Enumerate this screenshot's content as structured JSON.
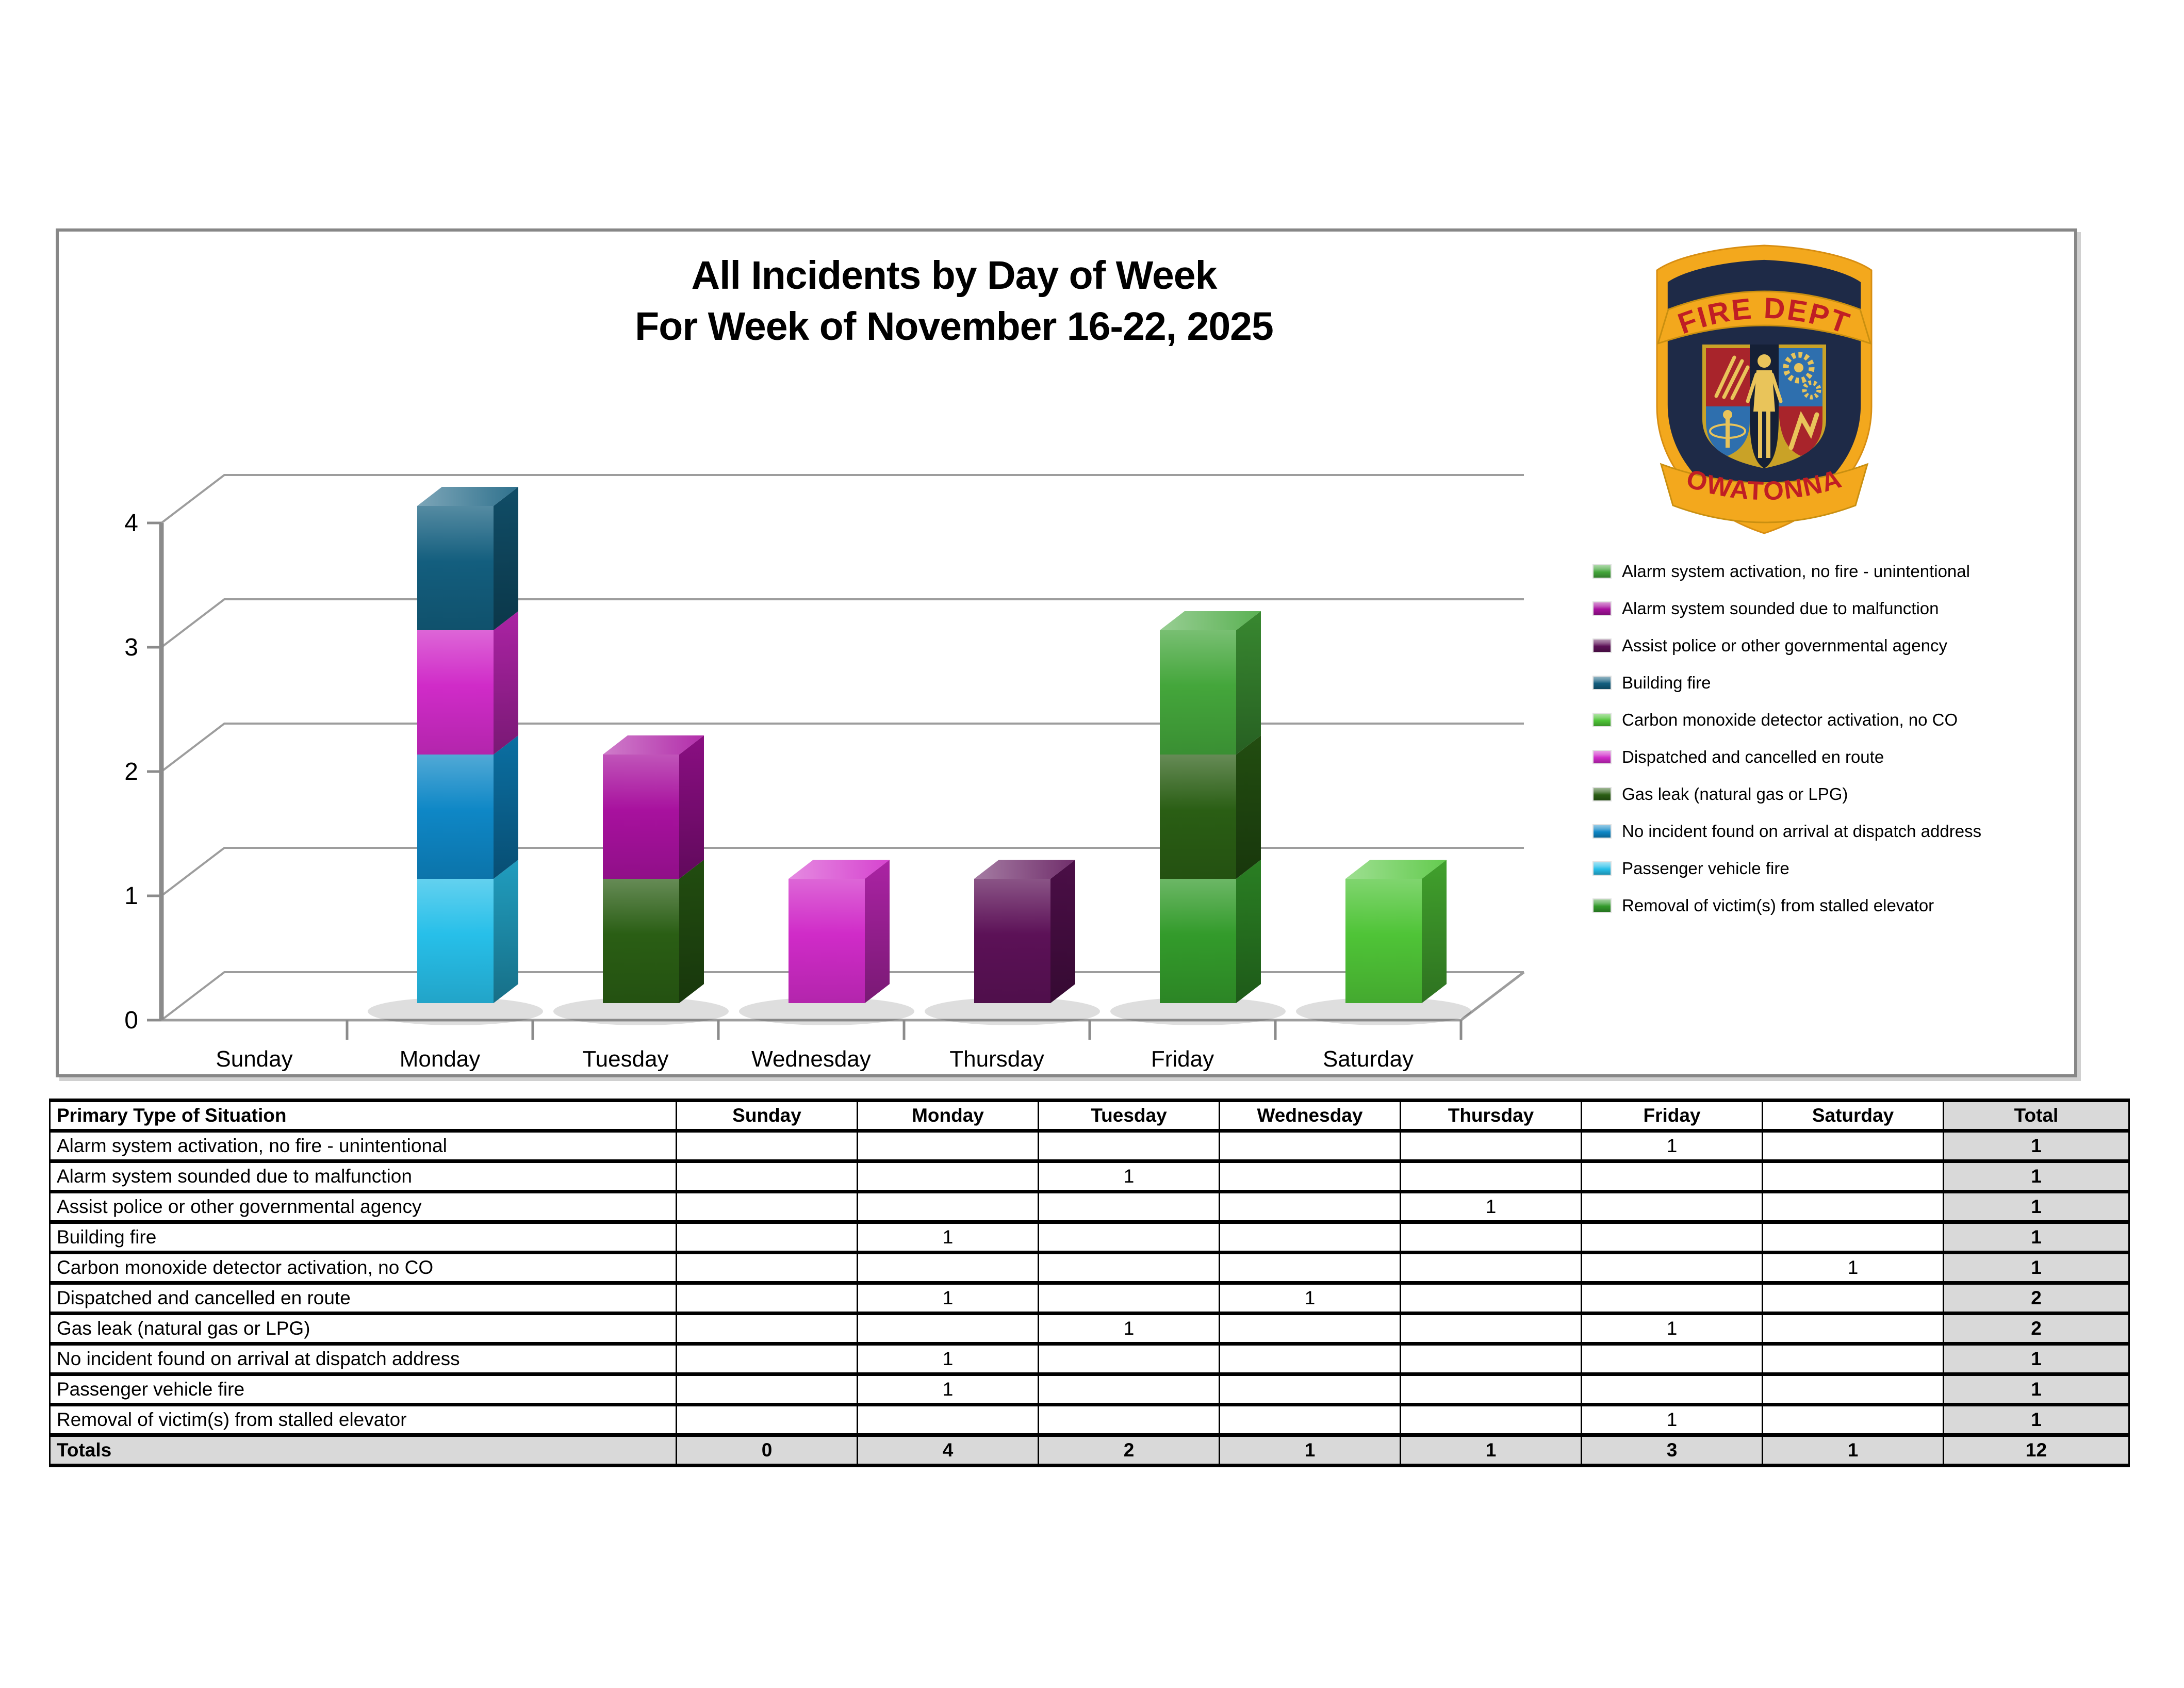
{
  "title": {
    "line1": "All Incidents by Day of Week",
    "line2": "For Week of November 16-22, 2025"
  },
  "logo": {
    "name": "owatonna-fire-dept-badge",
    "top_banner": "FIRE DEPT",
    "bottom_banner": "OWATONNA",
    "colors": {
      "gold": "#F3A81D",
      "navy": "#1E2A47",
      "red": "#B7232A",
      "blue": "#2E6FAE",
      "banner_text": "#C01E24"
    }
  },
  "chart_data": {
    "type": "bar",
    "stacked": true,
    "projection": "3d",
    "title": "All Incidents by Day of Week For Week of November 16-22, 2025",
    "xlabel": "",
    "ylabel": "",
    "categories": [
      "Sunday",
      "Monday",
      "Tuesday",
      "Wednesday",
      "Thursday",
      "Friday",
      "Saturday"
    ],
    "y_ticks": [
      0,
      1,
      2,
      3,
      4
    ],
    "ylim": [
      0,
      4
    ],
    "grid": true,
    "legend_position": "right",
    "stack_order_bottom_to_top": "reverse-alphabetical",
    "series": [
      {
        "name": "Alarm system activation, no fire - unintentional",
        "color": "#44A63B",
        "values": [
          0,
          0,
          0,
          0,
          0,
          1,
          0
        ]
      },
      {
        "name": "Alarm system sounded due to malfunction",
        "color": "#A8119E",
        "values": [
          0,
          0,
          1,
          0,
          0,
          0,
          0
        ]
      },
      {
        "name": "Assist police or other governmental agency",
        "color": "#5C1157",
        "values": [
          0,
          0,
          0,
          0,
          1,
          0,
          0
        ]
      },
      {
        "name": "Building fire",
        "color": "#135E7E",
        "values": [
          0,
          1,
          0,
          0,
          0,
          0,
          0
        ]
      },
      {
        "name": "Carbon monoxide detector activation, no CO",
        "color": "#4FC437",
        "values": [
          0,
          0,
          0,
          0,
          0,
          0,
          1
        ]
      },
      {
        "name": "Dispatched and cancelled en route",
        "color": "#D02BC8",
        "values": [
          0,
          1,
          0,
          1,
          0,
          0,
          0
        ]
      },
      {
        "name": "Gas leak (natural gas or LPG)",
        "color": "#2A5E14",
        "values": [
          0,
          0,
          1,
          0,
          0,
          1,
          0
        ]
      },
      {
        "name": "No incident found on arrival at dispatch address",
        "color": "#0E87C6",
        "values": [
          0,
          1,
          0,
          0,
          0,
          0,
          0
        ]
      },
      {
        "name": "Passenger vehicle fire",
        "color": "#27BFE9",
        "values": [
          0,
          1,
          0,
          0,
          0,
          0,
          0
        ]
      },
      {
        "name": "Removal of victim(s) from stalled elevator",
        "color": "#339B2B",
        "values": [
          0,
          0,
          0,
          0,
          0,
          1,
          0
        ]
      }
    ]
  },
  "table": {
    "header": [
      "Primary Type of Situation",
      "Sunday",
      "Monday",
      "Tuesday",
      "Wednesday",
      "Thursday",
      "Friday",
      "Saturday",
      "Total"
    ],
    "rows": [
      {
        "label": "Alarm system activation, no fire - unintentional",
        "values": [
          "",
          "",
          "",
          "",
          "",
          "1",
          ""
        ],
        "total": "1"
      },
      {
        "label": "Alarm system sounded due to malfunction",
        "values": [
          "",
          "",
          "1",
          "",
          "",
          "",
          ""
        ],
        "total": "1"
      },
      {
        "label": "Assist police or other governmental agency",
        "values": [
          "",
          "",
          "",
          "",
          "1",
          "",
          ""
        ],
        "total": "1"
      },
      {
        "label": "Building fire",
        "values": [
          "",
          "1",
          "",
          "",
          "",
          "",
          ""
        ],
        "total": "1"
      },
      {
        "label": "Carbon monoxide detector activation, no CO",
        "values": [
          "",
          "",
          "",
          "",
          "",
          "",
          "1"
        ],
        "total": "1"
      },
      {
        "label": "Dispatched and cancelled en route",
        "values": [
          "",
          "1",
          "",
          "1",
          "",
          "",
          ""
        ],
        "total": "2"
      },
      {
        "label": "Gas leak (natural gas or LPG)",
        "values": [
          "",
          "",
          "1",
          "",
          "",
          "1",
          ""
        ],
        "total": "2"
      },
      {
        "label": "No incident found on arrival at dispatch address",
        "values": [
          "",
          "1",
          "",
          "",
          "",
          "",
          ""
        ],
        "total": "1"
      },
      {
        "label": "Passenger vehicle fire",
        "values": [
          "",
          "1",
          "",
          "",
          "",
          "",
          ""
        ],
        "total": "1"
      },
      {
        "label": "Removal of victim(s) from stalled elevator",
        "values": [
          "",
          "",
          "",
          "",
          "",
          "1",
          ""
        ],
        "total": "1"
      }
    ],
    "totals_row": {
      "label": "Totals",
      "values": [
        "0",
        "4",
        "2",
        "1",
        "1",
        "3",
        "1"
      ],
      "total": "12"
    }
  },
  "style_colors": {
    "grid_line": "#9D9D9D",
    "axis_line": "#8B8B8B",
    "frame_border": "#878787",
    "table_shade": "#D9D9D9"
  }
}
